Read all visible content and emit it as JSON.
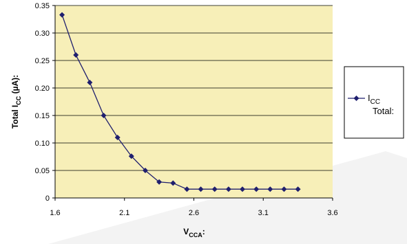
{
  "chart_data": {
    "type": "line",
    "xlabel": "V",
    "xlabel_sub": "CCA",
    "xlabel_suffix": ":",
    "ylabel": "Total I",
    "ylabel_sub": "CC",
    "ylabel_suffix": " (µA):",
    "xlim": [
      1.6,
      3.6
    ],
    "ylim": [
      0,
      0.35
    ],
    "x_ticks": [
      "1.6",
      "2.1",
      "2.6",
      "3.1",
      "3.6"
    ],
    "y_ticks": [
      "0",
      "0.05",
      "0.10",
      "0.15",
      "0.20",
      "0.25",
      "0.30",
      "0.35"
    ],
    "grid": true,
    "legend_position": "right",
    "colors": {
      "plot_background": "#f7efb8",
      "series_line": "#1f1f6e",
      "grid": "#000000"
    },
    "series": [
      {
        "name_main": "I",
        "name_sub": "CC",
        "name_line2": "Total:",
        "marker": "diamond",
        "x": [
          1.65,
          1.75,
          1.85,
          1.95,
          2.05,
          2.15,
          2.25,
          2.35,
          2.45,
          2.55,
          2.65,
          2.75,
          2.85,
          2.95,
          3.05,
          3.15,
          3.25,
          3.35
        ],
        "y": [
          0.333,
          0.26,
          0.21,
          0.15,
          0.11,
          0.076,
          0.05,
          0.029,
          0.027,
          0.016,
          0.016,
          0.016,
          0.016,
          0.016,
          0.016,
          0.016,
          0.016,
          0.016
        ]
      }
    ]
  }
}
